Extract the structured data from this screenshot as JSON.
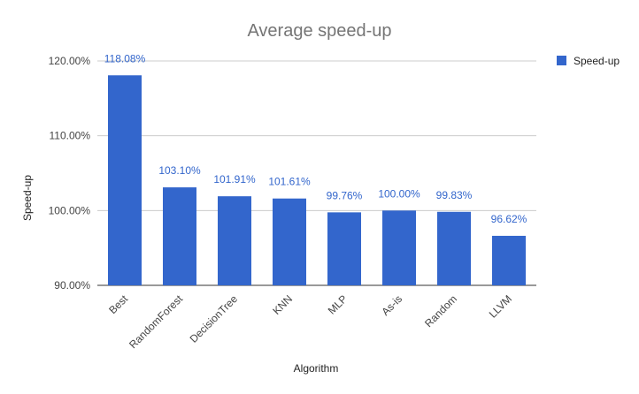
{
  "chart_data": {
    "type": "bar",
    "title": "Average speed-up",
    "xlabel": "Algorithm",
    "ylabel": "Speed-up",
    "categories": [
      "Best",
      "RandomForest",
      "DecisionTree",
      "KNN",
      "MLP",
      "As-is",
      "Random",
      "LLVM"
    ],
    "series": [
      {
        "name": "Speed-up",
        "values": [
          118.08,
          103.1,
          101.91,
          101.61,
          99.76,
          100.0,
          99.83,
          96.62
        ],
        "labels": [
          "118.08%",
          "103.10%",
          "101.91%",
          "101.61%",
          "99.76%",
          "100.00%",
          "99.83%",
          "96.62%"
        ],
        "color": "#3366cc"
      }
    ],
    "ylim": [
      90,
      120
    ],
    "yticks": [
      90,
      100,
      110,
      120
    ],
    "ytick_labels": [
      "90.00%",
      "100.00%",
      "110.00%",
      "120.00%"
    ],
    "grid": true,
    "legend_position": "right"
  }
}
